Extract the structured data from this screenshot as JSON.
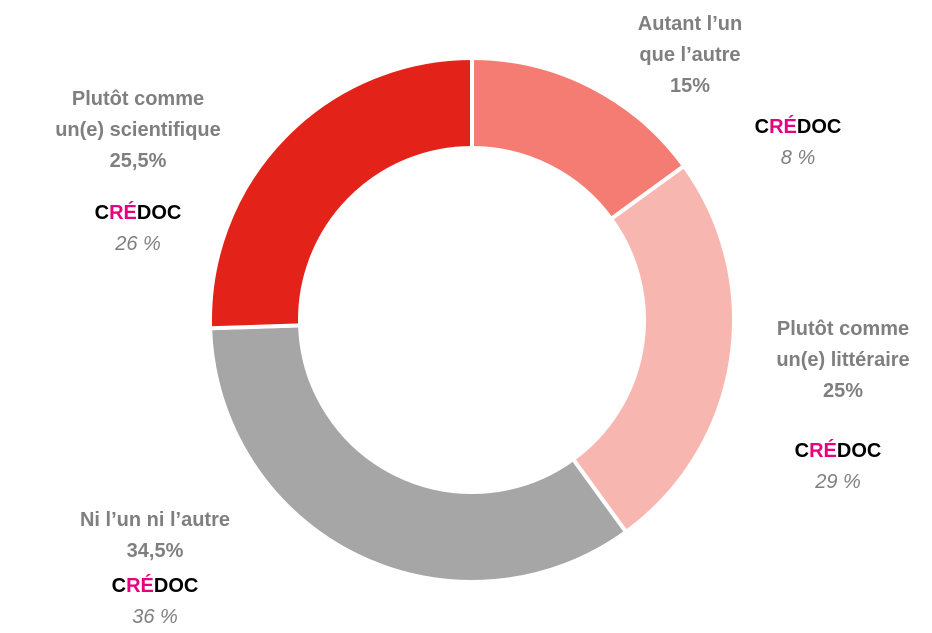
{
  "chart_data": {
    "type": "donut",
    "categories": [
      "Autant l’un que l’autre",
      "Plutôt comme un(e) littéraire",
      "Ni l’un ni l’autre",
      "Plutôt comme un(e) scientifique"
    ],
    "values": [
      15,
      25,
      34.5,
      25.5
    ],
    "value_labels": [
      "15%",
      "25%",
      "34,5%",
      "25,5%"
    ],
    "colors": [
      "#f47c72",
      "#f8b6b1",
      "#a6a6a6",
      "#e32219"
    ],
    "comparison_source": [
      "C",
      "RÉ",
      "DOC"
    ],
    "comparison_values": [
      8,
      29,
      36,
      26
    ],
    "comparison_labels": [
      "8 %",
      "29 %",
      "36 %",
      "26 %"
    ]
  }
}
